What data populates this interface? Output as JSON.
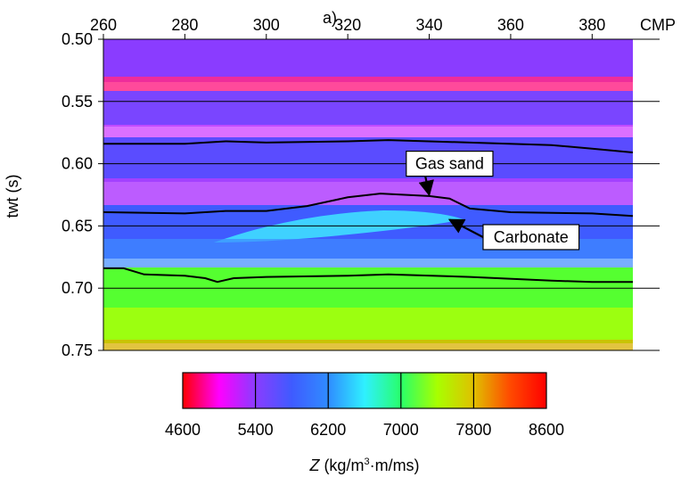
{
  "panel_label": "a)",
  "chart_data": {
    "type": "heatmap",
    "x": {
      "label": "CMP",
      "ticks": [
        260,
        280,
        300,
        320,
        340,
        360,
        380
      ],
      "range": [
        260,
        390
      ]
    },
    "y": {
      "label": "twt (s)",
      "ticks": [
        "0.50",
        "0.55",
        "0.60",
        "0.65",
        "0.70",
        "0.75"
      ],
      "range": [
        0.5,
        0.75
      ],
      "inverted": true
    },
    "colorbar": {
      "label_var": "Z",
      "label_units": " (kg/m",
      "label_sup": "3",
      "label_rest": "·m/ms)",
      "ticks": [
        "4600",
        "5400",
        "6200",
        "7000",
        "7800",
        "8600"
      ],
      "range": [
        4600,
        8600
      ],
      "colors": [
        "#ff0000",
        "#ff00ff",
        "#8a3cff",
        "#3f5bff",
        "#2f8cff",
        "#2ff0ff",
        "#28ff6a",
        "#a8ff00",
        "#e0c000",
        "#ff4a00",
        "#ff0000"
      ]
    },
    "horizons": [
      {
        "id": "h1",
        "points": [
          [
            260,
            0.584
          ],
          [
            280,
            0.584
          ],
          [
            290,
            0.582
          ],
          [
            300,
            0.583
          ],
          [
            320,
            0.582
          ],
          [
            330,
            0.581
          ],
          [
            350,
            0.583
          ],
          [
            370,
            0.585
          ],
          [
            380,
            0.588
          ],
          [
            390,
            0.591
          ]
        ]
      },
      {
        "id": "h2",
        "points": [
          [
            260,
            0.639
          ],
          [
            280,
            0.64
          ],
          [
            290,
            0.638
          ],
          [
            300,
            0.638
          ],
          [
            310,
            0.634
          ],
          [
            320,
            0.627
          ],
          [
            328,
            0.624
          ],
          [
            340,
            0.626
          ],
          [
            345,
            0.628
          ],
          [
            350,
            0.636
          ],
          [
            360,
            0.639
          ],
          [
            380,
            0.64
          ],
          [
            390,
            0.642
          ]
        ]
      },
      {
        "id": "h3",
        "points": [
          [
            260,
            0.684
          ],
          [
            265,
            0.684
          ],
          [
            270,
            0.689
          ],
          [
            280,
            0.69
          ],
          [
            285,
            0.692
          ],
          [
            288,
            0.695
          ],
          [
            292,
            0.692
          ],
          [
            300,
            0.691
          ],
          [
            320,
            0.69
          ],
          [
            330,
            0.689
          ],
          [
            350,
            0.691
          ],
          [
            370,
            0.694
          ],
          [
            380,
            0.695
          ],
          [
            390,
            0.695
          ]
        ]
      }
    ],
    "annotations": [
      {
        "text": "Gas sand",
        "x": 345,
        "y": 0.6,
        "target_x": 340,
        "target_y": 0.625
      },
      {
        "text": "Carbonate",
        "x": 365,
        "y": 0.659,
        "target_x": 345,
        "target_y": 0.645
      }
    ]
  }
}
